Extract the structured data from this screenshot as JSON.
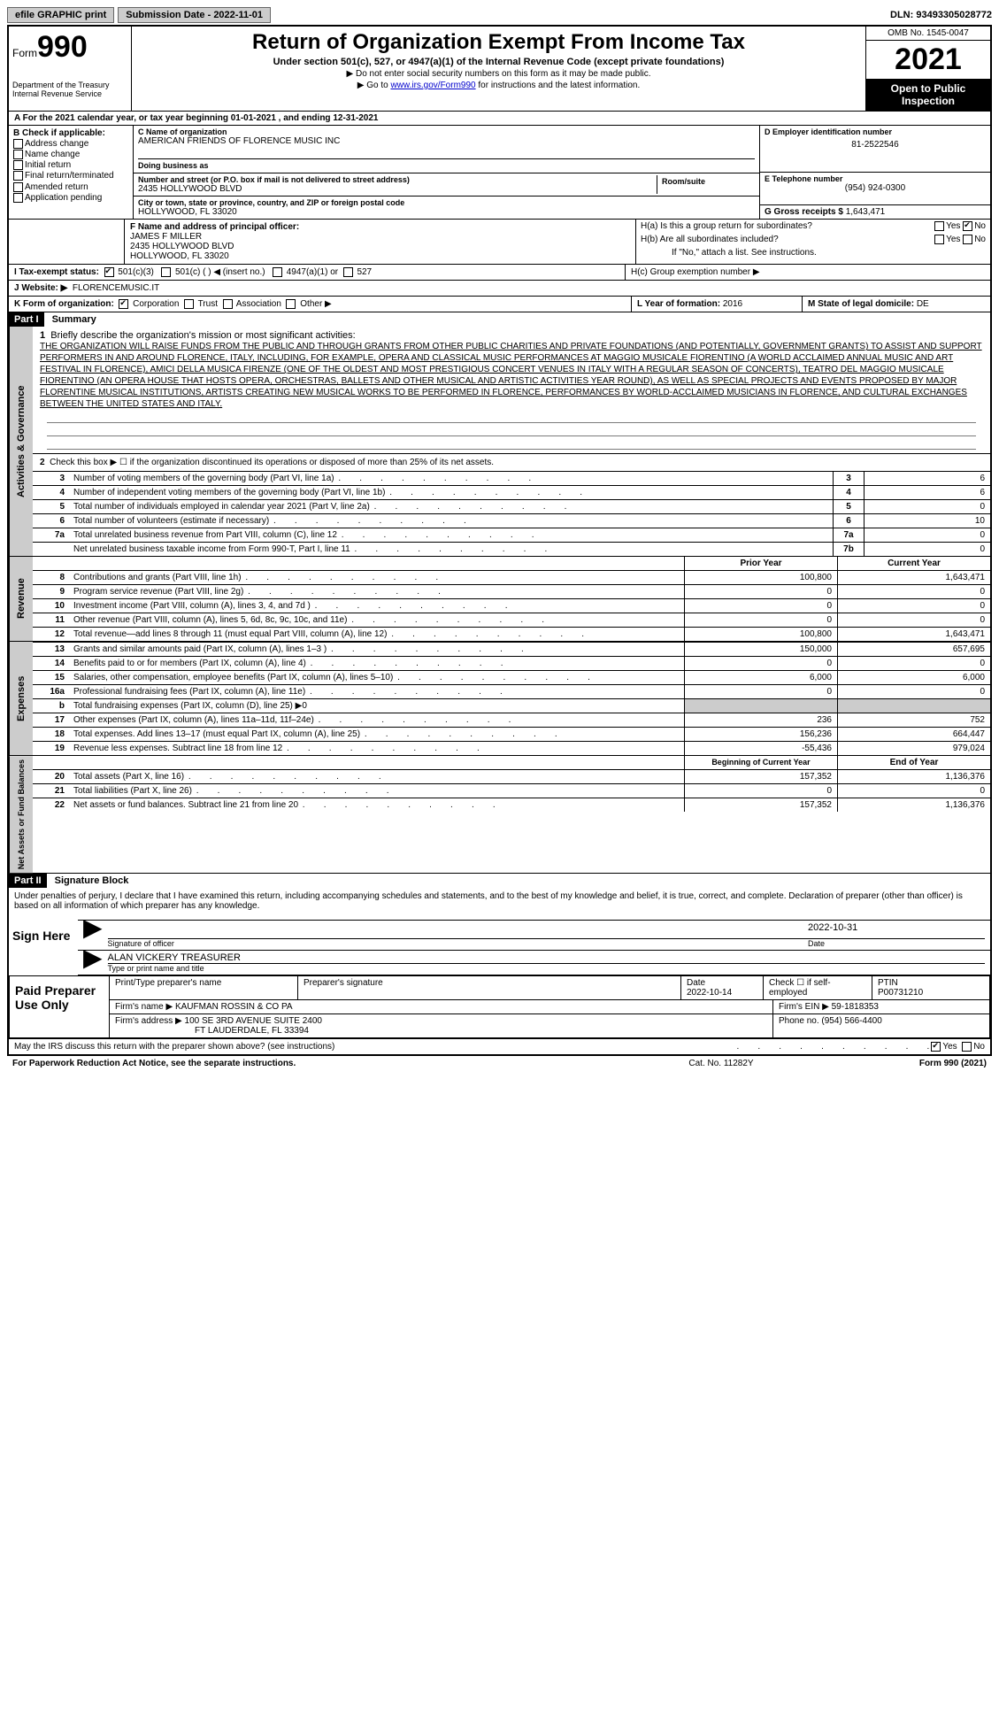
{
  "top": {
    "efile": "efile GRAPHIC print",
    "submission_label": "Submission Date - 2022-11-01",
    "dln": "DLN: 93493305028772"
  },
  "header": {
    "form_label": "Form",
    "form_number": "990",
    "dept": "Department of the Treasury Internal Revenue Service",
    "title": "Return of Organization Exempt From Income Tax",
    "subtitle": "Under section 501(c), 527, or 4947(a)(1) of the Internal Revenue Code (except private foundations)",
    "note1": "▶ Do not enter social security numbers on this form as it may be made public.",
    "note2_pre": "▶ Go to ",
    "note2_link": "www.irs.gov/Form990",
    "note2_post": " for instructions and the latest information.",
    "omb": "OMB No. 1545-0047",
    "year": "2021",
    "open_public": "Open to Public Inspection"
  },
  "row_a": "A For the 2021 calendar year, or tax year beginning 01-01-2021   , and ending 12-31-2021",
  "b": {
    "label": "B Check if applicable:",
    "addr": "Address change",
    "name": "Name change",
    "initial": "Initial return",
    "final": "Final return/terminated",
    "amended": "Amended return",
    "app": "Application pending"
  },
  "c": {
    "label": "C Name of organization",
    "org": "AMERICAN FRIENDS OF FLORENCE MUSIC INC",
    "dba_label": "Doing business as",
    "addr_label": "Number and street (or P.O. box if mail is not delivered to street address)",
    "addr": "2435 HOLLYWOOD BLVD",
    "room_label": "Room/suite",
    "city_label": "City or town, state or province, country, and ZIP or foreign postal code",
    "city": "HOLLYWOOD, FL  33020"
  },
  "d": {
    "label": "D Employer identification number",
    "val": "81-2522546"
  },
  "e": {
    "label": "E Telephone number",
    "val": "(954) 924-0300"
  },
  "g": {
    "label": "G Gross receipts $",
    "val": "1,643,471"
  },
  "f": {
    "label": "F  Name and address of principal officer:",
    "name": "JAMES F MILLER",
    "addr1": "2435 HOLLYWOOD BLVD",
    "addr2": "HOLLYWOOD, FL  33020"
  },
  "h": {
    "a_label": "H(a)  Is this a group return for subordinates?",
    "b_label": "H(b)  Are all subordinates included?",
    "b_note": "If \"No,\" attach a list. See instructions.",
    "c_label": "H(c)  Group exemption number ▶",
    "yes": "Yes",
    "no": "No"
  },
  "i": {
    "label": "I    Tax-exempt status:",
    "c3": "501(c)(3)",
    "c": "501(c) (  ) ◀ (insert no.)",
    "a1": "4947(a)(1) or",
    "s527": "527"
  },
  "j": {
    "label": "J   Website: ▶",
    "val": "FLORENCEMUSIC.IT"
  },
  "k": {
    "label": "K Form of organization:",
    "corp": "Corporation",
    "trust": "Trust",
    "assoc": "Association",
    "other": "Other ▶"
  },
  "l": {
    "label": "L Year of formation:",
    "val": "2016"
  },
  "m": {
    "label": "M State of legal domicile:",
    "val": "DE"
  },
  "part1": {
    "hdr": "Part I",
    "title": "Summary",
    "vlabel1": "Activities & Governance",
    "vlabel2": "Revenue",
    "vlabel3": "Expenses",
    "vlabel4": "Net Assets or Fund Balances",
    "q1": "Briefly describe the organization's mission or most significant activities:",
    "mission": "THE ORGANIZATION WILL RAISE FUNDS FROM THE PUBLIC AND THROUGH GRANTS FROM OTHER PUBLIC CHARITIES AND PRIVATE FOUNDATIONS (AND POTENTIALLY, GOVERNMENT GRANTS) TO ASSIST AND SUPPORT PERFORMERS IN AND AROUND FLORENCE, ITALY, INCLUDING, FOR EXAMPLE, OPERA AND CLASSICAL MUSIC PERFORMANCES AT MAGGIO MUSICALE FIORENTINO (A WORLD ACCLAIMED ANNUAL MUSIC AND ART FESTIVAL IN FLORENCE), AMICI DELLA MUSICA FIRENZE (ONE OF THE OLDEST AND MOST PRESTIGIOUS CONCERT VENUES IN ITALY WITH A REGULAR SEASON OF CONCERTS), TEATRO DEL MAGGIO MUSICALE FIORENTINO (AN OPERA HOUSE THAT HOSTS OPERA, ORCHESTRAS, BALLETS AND OTHER MUSICAL AND ARTISTIC ACTIVITIES YEAR ROUND), AS WELL AS SPECIAL PROJECTS AND EVENTS PROPOSED BY MAJOR FLORENTINE MUSICAL INSTITUTIONS, ARTISTS CREATING NEW MUSICAL WORKS TO BE PERFORMED IN FLORENCE, PERFORMANCES BY WORLD-ACCLAIMED MUSICIANS IN FLORENCE, AND CULTURAL EXCHANGES BETWEEN THE UNITED STATES AND ITALY.",
    "q2": "Check this box ▶ ☐ if the organization discontinued its operations or disposed of more than 25% of its net assets.",
    "rows_gov": [
      {
        "n": "3",
        "t": "Number of voting members of the governing body (Part VI, line 1a)",
        "box": "3",
        "v": "6"
      },
      {
        "n": "4",
        "t": "Number of independent voting members of the governing body (Part VI, line 1b)",
        "box": "4",
        "v": "6"
      },
      {
        "n": "5",
        "t": "Total number of individuals employed in calendar year 2021 (Part V, line 2a)",
        "box": "5",
        "v": "0"
      },
      {
        "n": "6",
        "t": "Total number of volunteers (estimate if necessary)",
        "box": "6",
        "v": "10"
      },
      {
        "n": "7a",
        "t": "Total unrelated business revenue from Part VIII, column (C), line 12",
        "box": "7a",
        "v": "0"
      },
      {
        "n": "",
        "t": "Net unrelated business taxable income from Form 990-T, Part I, line 11",
        "box": "7b",
        "v": "0"
      }
    ],
    "prior_hdr": "Prior Year",
    "curr_hdr": "Current Year",
    "rows_rev": [
      {
        "n": "8",
        "t": "Contributions and grants (Part VIII, line 1h)",
        "p": "100,800",
        "c": "1,643,471"
      },
      {
        "n": "9",
        "t": "Program service revenue (Part VIII, line 2g)",
        "p": "0",
        "c": "0"
      },
      {
        "n": "10",
        "t": "Investment income (Part VIII, column (A), lines 3, 4, and 7d )",
        "p": "0",
        "c": "0"
      },
      {
        "n": "11",
        "t": "Other revenue (Part VIII, column (A), lines 5, 6d, 8c, 9c, 10c, and 11e)",
        "p": "0",
        "c": "0"
      },
      {
        "n": "12",
        "t": "Total revenue—add lines 8 through 11 (must equal Part VIII, column (A), line 12)",
        "p": "100,800",
        "c": "1,643,471"
      }
    ],
    "rows_exp": [
      {
        "n": "13",
        "t": "Grants and similar amounts paid (Part IX, column (A), lines 1–3 )",
        "p": "150,000",
        "c": "657,695"
      },
      {
        "n": "14",
        "t": "Benefits paid to or for members (Part IX, column (A), line 4)",
        "p": "0",
        "c": "0"
      },
      {
        "n": "15",
        "t": "Salaries, other compensation, employee benefits (Part IX, column (A), lines 5–10)",
        "p": "6,000",
        "c": "6,000"
      },
      {
        "n": "16a",
        "t": "Professional fundraising fees (Part IX, column (A), line 11e)",
        "p": "0",
        "c": "0"
      }
    ],
    "row_16b": {
      "n": "b",
      "t": "Total fundraising expenses (Part IX, column (D), line 25) ▶0"
    },
    "rows_exp2": [
      {
        "n": "17",
        "t": "Other expenses (Part IX, column (A), lines 11a–11d, 11f–24e)",
        "p": "236",
        "c": "752"
      },
      {
        "n": "18",
        "t": "Total expenses. Add lines 13–17 (must equal Part IX, column (A), line 25)",
        "p": "156,236",
        "c": "664,447"
      },
      {
        "n": "19",
        "t": "Revenue less expenses. Subtract line 18 from line 12",
        "p": "-55,436",
        "c": "979,024"
      }
    ],
    "begin_hdr": "Beginning of Current Year",
    "end_hdr": "End of Year",
    "rows_net": [
      {
        "n": "20",
        "t": "Total assets (Part X, line 16)",
        "p": "157,352",
        "c": "1,136,376"
      },
      {
        "n": "21",
        "t": "Total liabilities (Part X, line 26)",
        "p": "0",
        "c": "0"
      },
      {
        "n": "22",
        "t": "Net assets or fund balances. Subtract line 21 from line 20",
        "p": "157,352",
        "c": "1,136,376"
      }
    ]
  },
  "part2": {
    "hdr": "Part II",
    "title": "Signature Block",
    "decl": "Under penalties of perjury, I declare that I have examined this return, including accompanying schedules and statements, and to the best of my knowledge and belief, it is true, correct, and complete. Declaration of preparer (other than officer) is based on all information of which preparer has any knowledge.",
    "sign_here": "Sign Here",
    "sig_officer": "Signature of officer",
    "sig_date": "2022-10-31",
    "date_label": "Date",
    "officer_name": "ALAN VICKERY TREASURER",
    "name_title_label": "Type or print name and title",
    "paid_prep": "Paid Preparer Use Only",
    "prep_name_label": "Print/Type preparer's name",
    "prep_sig_label": "Preparer's signature",
    "prep_date_label": "Date",
    "prep_date": "2022-10-14",
    "self_emp": "Check ☐ if self-employed",
    "ptin_label": "PTIN",
    "ptin": "P00731210",
    "firm_name_label": "Firm's name    ▶",
    "firm_name": "KAUFMAN ROSSIN & CO PA",
    "firm_ein_label": "Firm's EIN ▶",
    "firm_ein": "59-1818353",
    "firm_addr_label": "Firm's address ▶",
    "firm_addr1": "100 SE 3RD AVENUE SUITE 2400",
    "firm_addr2": "FT LAUDERDALE, FL  33394",
    "phone_label": "Phone no.",
    "phone": "(954) 566-4400",
    "discuss": "May the IRS discuss this return with the preparer shown above? (see instructions)",
    "yes": "Yes",
    "no": "No"
  },
  "footer": {
    "left": "For Paperwork Reduction Act Notice, see the separate instructions.",
    "mid": "Cat. No. 11282Y",
    "right": "Form 990 (2021)"
  }
}
